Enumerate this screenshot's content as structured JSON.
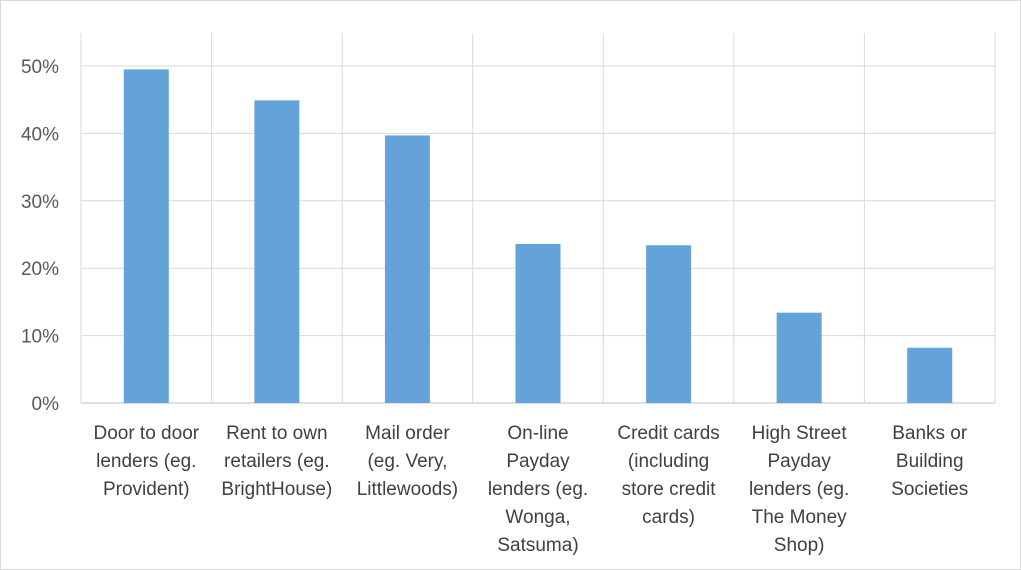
{
  "chart_data": {
    "type": "bar",
    "title": "",
    "xlabel": "",
    "ylabel": "",
    "categories": [
      [
        "Door to door",
        "lenders (eg.",
        "Provident)"
      ],
      [
        "Rent to own",
        "retailers (eg.",
        "BrightHouse)"
      ],
      [
        "Mail order",
        "(eg. Very,",
        "Littlewoods)"
      ],
      [
        "On-line",
        "Payday",
        "lenders (eg.",
        "Wonga,",
        "Satsuma)"
      ],
      [
        "Credit cards",
        "(including",
        "store credit",
        "cards)"
      ],
      [
        "High Street",
        "Payday",
        "lenders (eg.",
        "The Money",
        "Shop)"
      ],
      [
        "Banks or",
        "Building",
        "Societies"
      ]
    ],
    "values": [
      49.5,
      44.9,
      39.7,
      23.6,
      23.4,
      13.4,
      8.2
    ],
    "ylim": [
      0,
      50
    ],
    "yticks": [
      0,
      10,
      20,
      30,
      40,
      50
    ],
    "ytick_suffix": "%",
    "grid": true,
    "bar_color": "#64A3D9",
    "grid_color": "#d9d9d9",
    "axis_color": "#bfbfbf"
  }
}
